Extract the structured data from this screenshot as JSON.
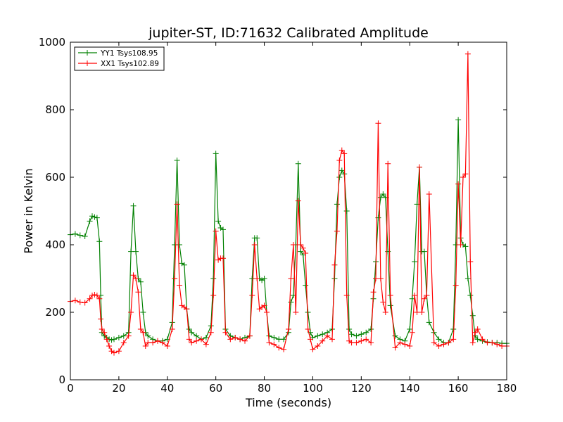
{
  "chart_data": {
    "type": "line",
    "title": "jupiter-ST, ID:71632 Calibrated Amplitude",
    "xlabel": "Time (seconds)",
    "ylabel": "Power in Kelvin",
    "xlim": [
      0,
      180
    ],
    "ylim": [
      0,
      1000
    ],
    "xticks": [
      0,
      20,
      40,
      60,
      80,
      100,
      120,
      140,
      160,
      180
    ],
    "yticks": [
      0,
      200,
      400,
      600,
      800,
      1000
    ],
    "grid": false,
    "legend_position": "top-left",
    "series": [
      {
        "name": "YY1 Tsys108.95",
        "color": "#008000",
        "marker": "plus",
        "x": [
          0,
          2,
          4,
          6,
          8,
          9,
          10,
          11,
          12,
          12.5,
          13,
          14,
          15,
          16,
          17,
          18,
          20,
          22,
          24,
          25,
          26,
          27,
          28,
          29,
          30,
          31,
          32,
          34,
          36,
          38,
          40,
          42,
          43,
          44,
          45,
          46,
          47,
          48,
          49,
          50,
          52,
          54,
          56,
          58,
          59,
          60,
          61,
          62,
          63,
          64,
          66,
          68,
          70,
          72,
          74,
          75,
          76,
          77,
          78,
          79,
          80,
          81,
          82,
          84,
          86,
          88,
          90,
          91,
          92,
          93,
          94,
          95,
          96,
          97,
          98,
          99,
          100,
          102,
          104,
          106,
          108,
          109,
          110,
          111,
          112,
          113,
          114,
          115,
          116,
          118,
          120,
          122,
          124,
          125,
          126,
          127,
          128,
          129,
          130,
          131,
          132,
          134,
          136,
          138,
          140,
          141,
          142,
          143,
          144,
          145,
          146,
          147,
          148,
          150,
          152,
          154,
          156,
          158,
          159,
          160,
          161,
          162,
          163,
          164,
          165,
          166,
          167,
          168,
          170,
          172,
          174,
          176,
          178,
          180
        ],
        "y": [
          430,
          432,
          428,
          425,
          470,
          485,
          482,
          480,
          410,
          250,
          140,
          130,
          125,
          120,
          118,
          120,
          125,
          130,
          140,
          380,
          515,
          380,
          300,
          290,
          200,
          140,
          130,
          120,
          115,
          115,
          120,
          170,
          400,
          650,
          400,
          345,
          340,
          210,
          150,
          140,
          130,
          120,
          125,
          160,
          300,
          670,
          470,
          450,
          445,
          150,
          130,
          125,
          120,
          125,
          130,
          300,
          420,
          420,
          300,
          295,
          300,
          200,
          130,
          125,
          120,
          120,
          140,
          230,
          250,
          400,
          640,
          380,
          370,
          280,
          200,
          140,
          125,
          130,
          135,
          140,
          150,
          300,
          520,
          600,
          620,
          610,
          500,
          150,
          135,
          130,
          135,
          140,
          150,
          240,
          350,
          480,
          540,
          550,
          540,
          380,
          220,
          130,
          120,
          115,
          150,
          240,
          350,
          520,
          630,
          380,
          380,
          250,
          170,
          140,
          120,
          110,
          110,
          150,
          400,
          770,
          420,
          400,
          395,
          300,
          250,
          190,
          130,
          120,
          115,
          112,
          110,
          110,
          108,
          108
        ]
      },
      {
        "name": "XX1 Tsys102.89",
        "color": "#ff0000",
        "marker": "plus",
        "x": [
          0,
          2,
          4,
          6,
          8,
          9,
          10,
          11,
          12,
          12.5,
          13,
          14,
          15,
          16,
          17,
          18,
          20,
          22,
          24,
          25,
          26,
          27,
          28,
          29,
          30,
          31,
          32,
          34,
          36,
          38,
          40,
          42,
          43,
          44,
          45,
          46,
          47,
          48,
          49,
          50,
          52,
          54,
          56,
          58,
          59,
          60,
          61,
          62,
          63,
          64,
          66,
          68,
          70,
          72,
          74,
          75,
          76,
          77,
          78,
          79,
          80,
          81,
          82,
          84,
          86,
          88,
          90,
          91,
          92,
          93,
          94,
          95,
          96,
          97,
          98,
          99,
          100,
          102,
          104,
          106,
          108,
          109,
          110,
          111,
          112,
          113,
          114,
          115,
          116,
          118,
          120,
          122,
          124,
          125,
          126,
          127,
          128,
          129,
          130,
          131,
          132,
          134,
          136,
          138,
          140,
          141,
          142,
          143,
          144,
          145,
          146,
          147,
          148,
          150,
          152,
          154,
          156,
          158,
          159,
          160,
          161,
          162,
          163,
          164,
          165,
          166,
          167,
          168,
          170,
          172,
          174,
          176,
          178,
          180
        ],
        "y": [
          232,
          235,
          230,
          228,
          240,
          250,
          252,
          250,
          240,
          180,
          150,
          140,
          120,
          100,
          85,
          80,
          85,
          110,
          130,
          200,
          310,
          300,
          260,
          150,
          140,
          100,
          110,
          110,
          115,
          110,
          100,
          150,
          300,
          520,
          280,
          220,
          215,
          210,
          120,
          110,
          115,
          120,
          105,
          140,
          250,
          440,
          355,
          360,
          360,
          140,
          120,
          125,
          120,
          115,
          130,
          250,
          400,
          300,
          210,
          215,
          220,
          200,
          110,
          105,
          95,
          90,
          150,
          300,
          400,
          200,
          530,
          400,
          390,
          375,
          150,
          120,
          90,
          100,
          115,
          130,
          120,
          340,
          440,
          650,
          680,
          670,
          250,
          115,
          110,
          110,
          115,
          120,
          110,
          260,
          300,
          760,
          300,
          230,
          200,
          640,
          250,
          95,
          110,
          105,
          100,
          140,
          250,
          200,
          630,
          200,
          240,
          250,
          550,
          110,
          100,
          105,
          110,
          120,
          280,
          580,
          400,
          600,
          610,
          965,
          350,
          110,
          140,
          150,
          120,
          110,
          110,
          105,
          100,
          100
        ]
      }
    ]
  }
}
